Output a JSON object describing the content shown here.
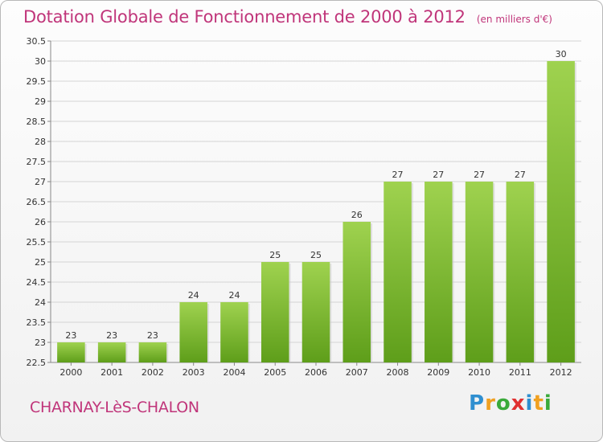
{
  "header": {
    "title": "Dotation Globale de Fonctionnement de 2000 à 2012",
    "subtitle": "(en milliers d'€)"
  },
  "footer": {
    "commune": "CHARNAY-LèS-CHALON",
    "logo_letters": [
      "P",
      "r",
      "o",
      "x",
      "i",
      "t",
      "i"
    ],
    "logo_colors": [
      "#2f8fd0",
      "#f0a020",
      "#3aaa3a",
      "#e03030",
      "#2f8fd0",
      "#f0a020",
      "#3aaa3a"
    ]
  },
  "chart_data": {
    "type": "bar",
    "title": "Dotation Globale de Fonctionnement de 2000 à 2012",
    "subtitle": "(en milliers d'€)",
    "categories": [
      "2000",
      "2001",
      "2002",
      "2003",
      "2004",
      "2005",
      "2006",
      "2007",
      "2008",
      "2009",
      "2010",
      "2011",
      "2012"
    ],
    "values": [
      23,
      23,
      23,
      24,
      24,
      25,
      25,
      26,
      27,
      27,
      27,
      27,
      30
    ],
    "data_labels": [
      "23",
      "23",
      "23",
      "24",
      "24",
      "25",
      "25",
      "26",
      "27",
      "27",
      "27",
      "27",
      "30"
    ],
    "ylim": [
      22.5,
      30.5
    ],
    "yticks": [
      22.5,
      23,
      23.5,
      24,
      24.5,
      25,
      25.5,
      26,
      26.5,
      27,
      27.5,
      28,
      28.5,
      29,
      29.5,
      30,
      30.5
    ],
    "ytick_labels": [
      "22.5",
      "23",
      "23.5",
      "24",
      "24.5",
      "25",
      "25.5",
      "26",
      "26.5",
      "27",
      "27.5",
      "28",
      "28.5",
      "29",
      "29.5",
      "30",
      "30.5"
    ],
    "grid": true,
    "colors": {
      "bar_top": "#9fd24f",
      "bar_bottom": "#5e9e1a",
      "grid": "#d4d4d4",
      "axis_text": "#333333"
    }
  }
}
